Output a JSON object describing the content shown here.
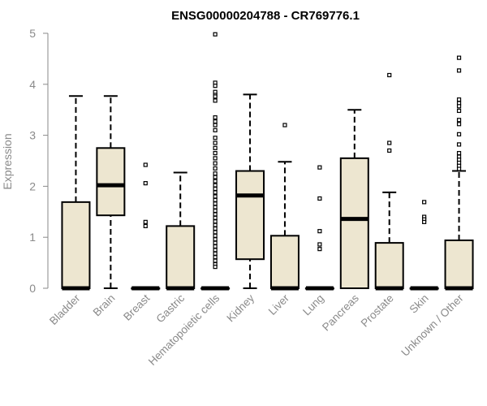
{
  "chart_data": {
    "type": "boxplot",
    "title": "ENSG00000204788 - CR769776.1",
    "xlabel": "",
    "ylabel": "Expression",
    "ylim": [
      0,
      5
    ],
    "yticks": [
      0,
      1,
      2,
      3,
      4,
      5
    ],
    "grid": false,
    "legend": "none",
    "colors": {
      "box_fill": "#ede6d0",
      "box_stroke": "#000000",
      "axis": "#8a8a8a"
    },
    "categories": [
      "Bladder",
      "Brain",
      "Breast",
      "Gastric",
      "Hematopoietic cells",
      "Kidney",
      "Liver",
      "Lung",
      "Pancreas",
      "Prostate",
      "Skin",
      "Unknown / Other"
    ],
    "boxes": [
      {
        "category": "Bladder",
        "whisker_low": 0,
        "q1": 0,
        "median": 0,
        "q3": 1.69,
        "whisker_high": 3.77,
        "outliers": []
      },
      {
        "category": "Brain",
        "whisker_low": 0,
        "q1": 1.43,
        "median": 2.02,
        "q3": 2.75,
        "whisker_high": 3.77,
        "outliers": []
      },
      {
        "category": "Breast",
        "whisker_low": 0,
        "q1": 0,
        "median": 0,
        "q3": 0,
        "whisker_high": 0,
        "outliers": [
          2.42,
          2.06,
          1.3,
          1.22
        ]
      },
      {
        "category": "Gastric",
        "whisker_low": 0,
        "q1": 0,
        "median": 0,
        "q3": 1.22,
        "whisker_high": 2.27,
        "outliers": []
      },
      {
        "category": "Hematopoietic cells",
        "whisker_low": 0,
        "q1": 0,
        "median": 0,
        "q3": 0,
        "whisker_high": 0,
        "outliers": [
          4.98,
          4.03,
          3.97,
          3.85,
          3.79,
          3.76,
          3.68,
          3.35,
          3.27,
          3.2,
          3.1,
          2.95,
          2.85,
          2.75,
          2.65,
          2.55,
          2.45,
          2.35,
          2.25,
          2.18,
          2.1,
          2.02,
          1.95,
          1.88,
          1.8,
          1.73,
          1.66,
          1.59,
          1.52,
          1.45,
          1.38,
          1.31,
          1.24,
          1.17,
          1.1,
          1.03,
          0.96,
          0.89,
          0.82,
          0.75,
          0.68,
          0.61,
          0.54,
          0.47,
          0.42
        ]
      },
      {
        "category": "Kidney",
        "whisker_low": 0,
        "q1": 0.57,
        "median": 1.82,
        "q3": 2.3,
        "whisker_high": 3.8,
        "outliers": []
      },
      {
        "category": "Liver",
        "whisker_low": 0,
        "q1": 0,
        "median": 0,
        "q3": 1.03,
        "whisker_high": 2.48,
        "outliers": [
          3.2
        ]
      },
      {
        "category": "Lung",
        "whisker_low": 0,
        "q1": 0,
        "median": 0,
        "q3": 0,
        "whisker_high": 0,
        "outliers": [
          2.37,
          1.76,
          1.12,
          0.86,
          0.77
        ]
      },
      {
        "category": "Pancreas",
        "whisker_low": 0,
        "q1": 0,
        "median": 1.36,
        "q3": 2.55,
        "whisker_high": 3.5,
        "outliers": []
      },
      {
        "category": "Prostate",
        "whisker_low": 0,
        "q1": 0,
        "median": 0,
        "q3": 0.89,
        "whisker_high": 1.88,
        "outliers": [
          4.18,
          2.85,
          2.7
        ]
      },
      {
        "category": "Skin",
        "whisker_low": 0,
        "q1": 0,
        "median": 0,
        "q3": 0,
        "whisker_high": 0,
        "outliers": [
          1.69,
          1.4,
          1.35,
          1.3
        ]
      },
      {
        "category": "Unknown / Other",
        "whisker_low": 0,
        "q1": 0,
        "median": 0,
        "q3": 0.94,
        "whisker_high": 2.3,
        "outliers": [
          4.52,
          4.27,
          3.7,
          3.63,
          3.57,
          3.48,
          3.3,
          3.22,
          3.02,
          2.82,
          2.65,
          2.58,
          2.52,
          2.46,
          2.4,
          2.34
        ]
      }
    ]
  }
}
